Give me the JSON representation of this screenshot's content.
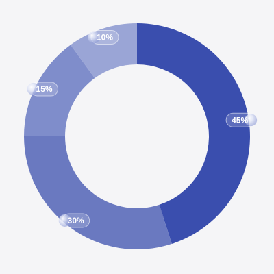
{
  "chart_data": {
    "type": "donut",
    "values": [
      45,
      30,
      15,
      10
    ],
    "value_labels": [
      "45%",
      "30%",
      "15%",
      "10%"
    ],
    "colors": [
      "#3a4eae",
      "#6a79c0",
      "#7f8dcb",
      "#9aa5d6"
    ]
  }
}
